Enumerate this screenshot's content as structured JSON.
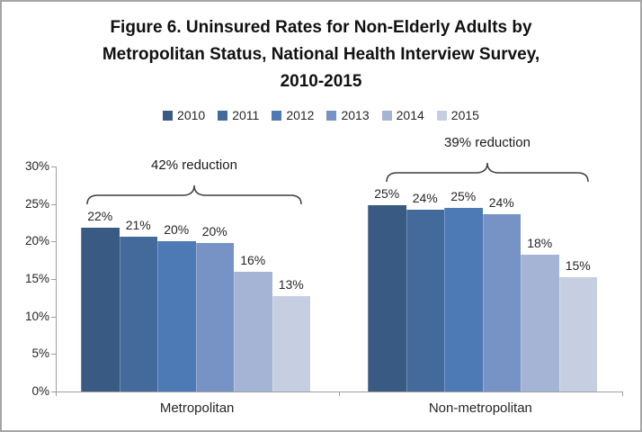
{
  "figure": {
    "title_lines": [
      "Figure 6. Uninsured Rates for Non-Elderly Adults by",
      "Metropolitan Status, National Health Interview Survey,",
      "2010-2015"
    ]
  },
  "chart_data": {
    "type": "bar",
    "title": "Figure 6. Uninsured Rates for Non-Elderly Adults by Metropolitan Status, National Health Interview Survey, 2010-2015",
    "categories": [
      "Metropolitan",
      "Non-metropolitan"
    ],
    "series": [
      {
        "name": "2010",
        "color": "#395A83",
        "values": [
          21.8,
          24.9
        ],
        "labels": [
          "22%",
          "25%"
        ]
      },
      {
        "name": "2011",
        "color": "#44699B",
        "values": [
          20.7,
          24.2
        ],
        "labels": [
          "21%",
          "24%"
        ]
      },
      {
        "name": "2012",
        "color": "#4D7AB5",
        "values": [
          20.1,
          24.5
        ],
        "labels": [
          "20%",
          "25%"
        ]
      },
      {
        "name": "2013",
        "color": "#7792C5",
        "values": [
          19.8,
          23.7
        ],
        "labels": [
          "20%",
          "24%"
        ]
      },
      {
        "name": "2014",
        "color": "#A5B3D4",
        "values": [
          16.0,
          18.3
        ],
        "labels": [
          "16%",
          "18%"
        ]
      },
      {
        "name": "2015",
        "color": "#C6CFE2",
        "values": [
          12.7,
          15.3
        ],
        "labels": [
          "13%",
          "15%"
        ]
      }
    ],
    "y_axis": {
      "tick_labels": [
        "0%",
        "5%",
        "10%",
        "15%",
        "20%",
        "25%",
        "30%"
      ],
      "min": 0,
      "max": 30,
      "step": 5
    },
    "annotations": [
      {
        "text": "42% reduction",
        "category": "Metropolitan"
      },
      {
        "text": "39% reduction",
        "category": "Non-metropolitan"
      }
    ],
    "legend_position": "top",
    "grid": false,
    "axis_color": "#9e9e9e"
  }
}
